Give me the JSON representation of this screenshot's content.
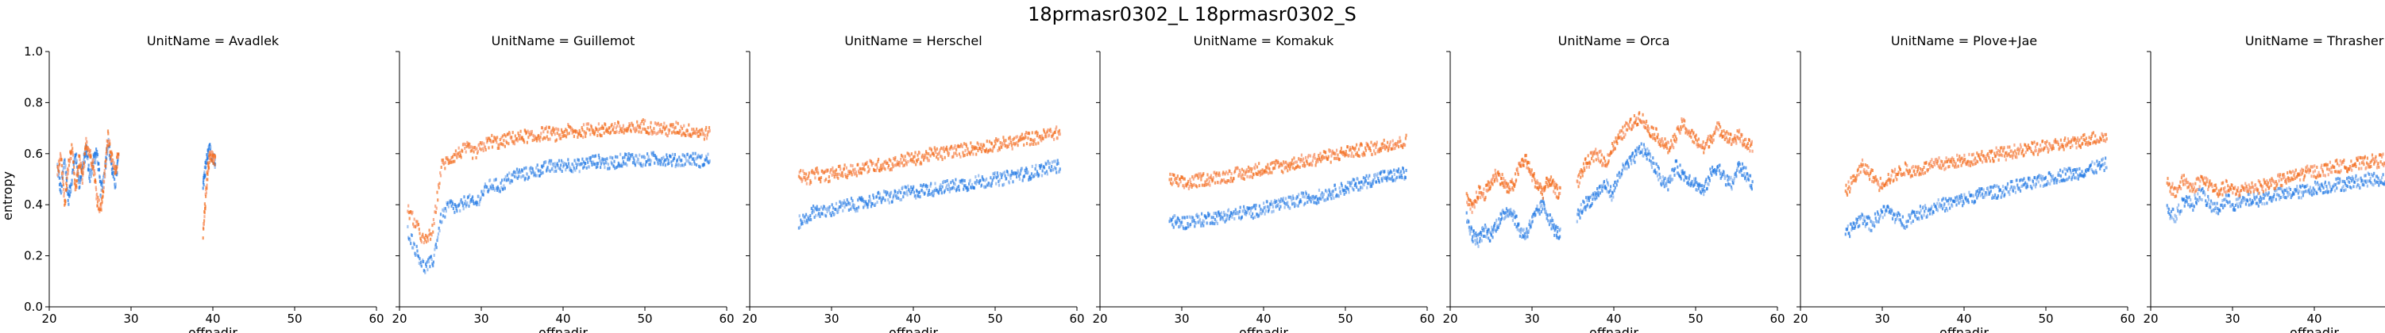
{
  "chart_data": {
    "type": "scatter",
    "title": "18prmasr0302_L 18prmasr0302_S",
    "xlabel": "offnadir",
    "ylabel": "entropy",
    "xlim": [
      20,
      60
    ],
    "ylim": [
      0.0,
      1.0
    ],
    "xticks": [
      "20",
      "30",
      "40",
      "50",
      "60"
    ],
    "yticks": [
      "0.0",
      "0.2",
      "0.4",
      "0.6",
      "0.8",
      "1.0"
    ],
    "grid": false,
    "colors": {
      "series_a": "#1f77e4",
      "series_b": "#f46d1e",
      "series_a_light": "#8fb8ee",
      "series_b_light": "#f8a07a"
    },
    "panels": [
      {
        "title": "UnitName = Avadlek",
        "sharey_labels": true,
        "segments": [
          {
            "x0": 21.0,
            "x1": 28.5,
            "blue": [
              0.55,
              0.45,
              0.58,
              0.42,
              0.5,
              0.6,
              0.48,
              0.55,
              0.62,
              0.5,
              0.58,
              0.6,
              0.45,
              0.52,
              0.65,
              0.55,
              0.48,
              0.6
            ],
            "orange": [
              0.52,
              0.6,
              0.4,
              0.55,
              0.62,
              0.45,
              0.58,
              0.5,
              0.65,
              0.6,
              0.55,
              0.42,
              0.38,
              0.5,
              0.68,
              0.58,
              0.52,
              0.62
            ]
          },
          {
            "x0": 38.8,
            "x1": 40.3,
            "blue": [
              0.48,
              0.55,
              0.6,
              0.62,
              0.58,
              0.56
            ],
            "orange": [
              0.28,
              0.42,
              0.55,
              0.6,
              0.58,
              0.57
            ]
          }
        ]
      },
      {
        "title": "UnitName = Guillemot",
        "segments": [
          {
            "x0": 21.0,
            "x1": 58.0,
            "blue": [
              0.3,
              0.22,
              0.15,
              0.18,
              0.35,
              0.4,
              0.38,
              0.42,
              0.4,
              0.45,
              0.48,
              0.47,
              0.5,
              0.52,
              0.52,
              0.53,
              0.54,
              0.55,
              0.55,
              0.56,
              0.55,
              0.56,
              0.57,
              0.57,
              0.56,
              0.57,
              0.58,
              0.58,
              0.57,
              0.58,
              0.58,
              0.58,
              0.57,
              0.58,
              0.58,
              0.57,
              0.58
            ],
            "orange": [
              0.38,
              0.32,
              0.25,
              0.3,
              0.55,
              0.58,
              0.6,
              0.62,
              0.6,
              0.63,
              0.65,
              0.64,
              0.66,
              0.66,
              0.67,
              0.66,
              0.68,
              0.68,
              0.67,
              0.69,
              0.68,
              0.69,
              0.7,
              0.69,
              0.7,
              0.7,
              0.69,
              0.7,
              0.71,
              0.7,
              0.7,
              0.69,
              0.7,
              0.69,
              0.69,
              0.68,
              0.68
            ]
          }
        ]
      },
      {
        "title": "UnitName = Herschel",
        "segments": [
          {
            "x0": 26.0,
            "x1": 58.0,
            "blue": [
              0.33,
              0.35,
              0.38,
              0.37,
              0.38,
              0.39,
              0.4,
              0.4,
              0.41,
              0.42,
              0.43,
              0.43,
              0.44,
              0.45,
              0.45,
              0.46,
              0.46,
              0.47,
              0.47,
              0.48,
              0.48,
              0.49,
              0.49,
              0.5,
              0.5,
              0.51,
              0.52,
              0.52,
              0.53,
              0.54,
              0.55,
              0.55
            ],
            "orange": [
              0.52,
              0.5,
              0.52,
              0.51,
              0.52,
              0.53,
              0.53,
              0.54,
              0.55,
              0.55,
              0.56,
              0.56,
              0.57,
              0.58,
              0.58,
              0.59,
              0.6,
              0.6,
              0.61,
              0.61,
              0.62,
              0.62,
              0.63,
              0.63,
              0.64,
              0.64,
              0.65,
              0.66,
              0.66,
              0.67,
              0.68,
              0.68
            ]
          }
        ]
      },
      {
        "title": "UnitName = Komakuk",
        "segments": [
          {
            "x0": 28.5,
            "x1": 57.5,
            "blue": [
              0.34,
              0.33,
              0.33,
              0.34,
              0.34,
              0.35,
              0.35,
              0.36,
              0.36,
              0.37,
              0.37,
              0.38,
              0.39,
              0.4,
              0.4,
              0.41,
              0.42,
              0.43,
              0.43,
              0.44,
              0.45,
              0.46,
              0.47,
              0.48,
              0.49,
              0.5,
              0.51,
              0.51,
              0.52,
              0.52
            ],
            "orange": [
              0.5,
              0.49,
              0.48,
              0.49,
              0.5,
              0.5,
              0.51,
              0.51,
              0.52,
              0.52,
              0.53,
              0.54,
              0.54,
              0.55,
              0.55,
              0.56,
              0.57,
              0.57,
              0.58,
              0.59,
              0.59,
              0.6,
              0.61,
              0.61,
              0.62,
              0.62,
              0.63,
              0.64,
              0.64,
              0.65
            ]
          }
        ]
      },
      {
        "title": "UnitName = Orca",
        "segments": [
          {
            "x0": 22.0,
            "x1": 33.5,
            "blue": [
              0.35,
              0.28,
              0.26,
              0.3,
              0.28,
              0.32,
              0.35,
              0.38,
              0.36,
              0.3,
              0.28,
              0.33,
              0.37,
              0.4,
              0.35,
              0.3,
              0.28
            ],
            "orange": [
              0.42,
              0.38,
              0.45,
              0.44,
              0.48,
              0.52,
              0.5,
              0.46,
              0.48,
              0.55,
              0.58,
              0.52,
              0.48,
              0.45,
              0.5,
              0.46,
              0.44
            ]
          },
          {
            "x0": 35.5,
            "x1": 57.0,
            "blue": [
              0.35,
              0.4,
              0.42,
              0.45,
              0.48,
              0.44,
              0.52,
              0.55,
              0.58,
              0.62,
              0.6,
              0.55,
              0.5,
              0.48,
              0.55,
              0.52,
              0.5,
              0.48,
              0.45,
              0.52,
              0.55,
              0.5,
              0.48,
              0.55,
              0.52,
              0.48
            ],
            "orange": [
              0.48,
              0.55,
              0.58,
              0.6,
              0.56,
              0.62,
              0.66,
              0.7,
              0.72,
              0.75,
              0.7,
              0.68,
              0.65,
              0.62,
              0.66,
              0.72,
              0.68,
              0.65,
              0.62,
              0.66,
              0.7,
              0.68,
              0.65,
              0.67,
              0.64,
              0.62
            ]
          }
        ]
      },
      {
        "title": "UnitName = Plove+Jae",
        "segments": [
          {
            "x0": 25.5,
            "x1": 57.5,
            "blue": [
              0.28,
              0.32,
              0.35,
              0.32,
              0.36,
              0.38,
              0.35,
              0.33,
              0.36,
              0.37,
              0.38,
              0.4,
              0.4,
              0.41,
              0.42,
              0.43,
              0.44,
              0.45,
              0.45,
              0.46,
              0.47,
              0.48,
              0.48,
              0.49,
              0.5,
              0.51,
              0.52,
              0.52,
              0.53,
              0.54,
              0.55,
              0.56
            ],
            "orange": [
              0.45,
              0.5,
              0.55,
              0.52,
              0.48,
              0.5,
              0.52,
              0.54,
              0.53,
              0.54,
              0.55,
              0.56,
              0.56,
              0.57,
              0.57,
              0.58,
              0.59,
              0.59,
              0.6,
              0.6,
              0.61,
              0.61,
              0.62,
              0.62,
              0.63,
              0.63,
              0.64,
              0.64,
              0.65,
              0.66,
              0.66,
              0.67
            ]
          }
        ]
      },
      {
        "title": "UnitName = Thrasher",
        "segments": [
          {
            "x0": 22.0,
            "x1": 57.0,
            "blue": [
              0.38,
              0.35,
              0.42,
              0.4,
              0.45,
              0.4,
              0.38,
              0.42,
              0.4,
              0.41,
              0.42,
              0.42,
              0.43,
              0.44,
              0.44,
              0.45,
              0.45,
              0.46,
              0.47,
              0.47,
              0.48,
              0.48,
              0.49,
              0.49,
              0.5,
              0.5,
              0.5,
              0.49,
              0.5,
              0.51,
              0.48,
              0.5,
              0.52,
              0.55,
              0.56
            ],
            "orange": [
              0.48,
              0.45,
              0.5,
              0.46,
              0.5,
              0.48,
              0.45,
              0.47,
              0.45,
              0.46,
              0.47,
              0.47,
              0.48,
              0.49,
              0.5,
              0.51,
              0.52,
              0.53,
              0.53,
              0.54,
              0.55,
              0.55,
              0.56,
              0.56,
              0.57,
              0.57,
              0.58,
              0.58,
              0.59,
              0.6,
              0.6,
              0.61,
              0.62,
              0.64,
              0.66
            ]
          }
        ]
      }
    ]
  }
}
